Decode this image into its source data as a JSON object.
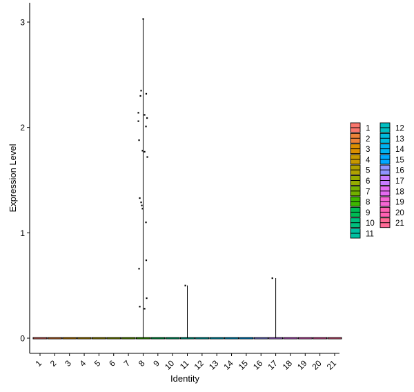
{
  "chart_data": {
    "type": "violin",
    "xlabel": "Identity",
    "ylabel": "Expression Level",
    "categories": [
      "1",
      "2",
      "3",
      "4",
      "5",
      "6",
      "7",
      "8",
      "9",
      "10",
      "11",
      "12",
      "13",
      "14",
      "15",
      "16",
      "17",
      "18",
      "19",
      "20",
      "21"
    ],
    "ylim": [
      -0.15,
      3.2
    ],
    "yticks": [
      0,
      1,
      2,
      3
    ],
    "colors": [
      "#F8766D",
      "#EC8239",
      "#DB8E00",
      "#C79800",
      "#AFA100",
      "#94AA00",
      "#72B000",
      "#3DB700",
      "#00BB54",
      "#00BF7D",
      "#00C0A1",
      "#00BFC2",
      "#00BBDD",
      "#00B3F1",
      "#00A8FF",
      "#8F94FF",
      "#C77CFF",
      "#E46BF1",
      "#F766D4",
      "#FF61B3",
      "#FF6A96"
    ],
    "violins": [
      {
        "category": "8",
        "max": 3.03
      },
      {
        "category": "11",
        "max": 0.5
      },
      {
        "category": "17",
        "max": 0.57
      }
    ],
    "points": [
      {
        "category": "8",
        "jitter": 0.0,
        "y": 3.03
      },
      {
        "category": "8",
        "jitter": -0.15,
        "y": 2.35
      },
      {
        "category": "8",
        "jitter": -0.2,
        "y": 2.3
      },
      {
        "category": "8",
        "jitter": 0.22,
        "y": 2.32
      },
      {
        "category": "8",
        "jitter": -0.35,
        "y": 2.14
      },
      {
        "category": "8",
        "jitter": 0.1,
        "y": 2.12
      },
      {
        "category": "8",
        "jitter": 0.28,
        "y": 2.09
      },
      {
        "category": "8",
        "jitter": -0.35,
        "y": 2.06
      },
      {
        "category": "8",
        "jitter": 0.2,
        "y": 2.01
      },
      {
        "category": "8",
        "jitter": -0.3,
        "y": 1.88
      },
      {
        "category": "8",
        "jitter": -0.05,
        "y": 1.78
      },
      {
        "category": "8",
        "jitter": 0.1,
        "y": 1.77
      },
      {
        "category": "8",
        "jitter": 0.3,
        "y": 1.72
      },
      {
        "category": "8",
        "jitter": -0.25,
        "y": 1.33
      },
      {
        "category": "8",
        "jitter": -0.15,
        "y": 1.29
      },
      {
        "category": "8",
        "jitter": -0.1,
        "y": 1.26
      },
      {
        "category": "8",
        "jitter": -0.05,
        "y": 1.23
      },
      {
        "category": "8",
        "jitter": 0.2,
        "y": 1.1
      },
      {
        "category": "8",
        "jitter": 0.22,
        "y": 0.74
      },
      {
        "category": "8",
        "jitter": -0.3,
        "y": 0.66
      },
      {
        "category": "8",
        "jitter": 0.25,
        "y": 0.38
      },
      {
        "category": "8",
        "jitter": -0.25,
        "y": 0.3
      },
      {
        "category": "8",
        "jitter": 0.1,
        "y": 0.28
      },
      {
        "category": "11",
        "jitter": -0.15,
        "y": 0.5
      },
      {
        "category": "17",
        "jitter": -0.25,
        "y": 0.57
      }
    ],
    "legend": {
      "placement": "right",
      "entries": [
        "1",
        "2",
        "3",
        "4",
        "5",
        "6",
        "7",
        "8",
        "9",
        "10",
        "11",
        "12",
        "13",
        "14",
        "15",
        "16",
        "17",
        "18",
        "19",
        "20",
        "21"
      ]
    }
  }
}
